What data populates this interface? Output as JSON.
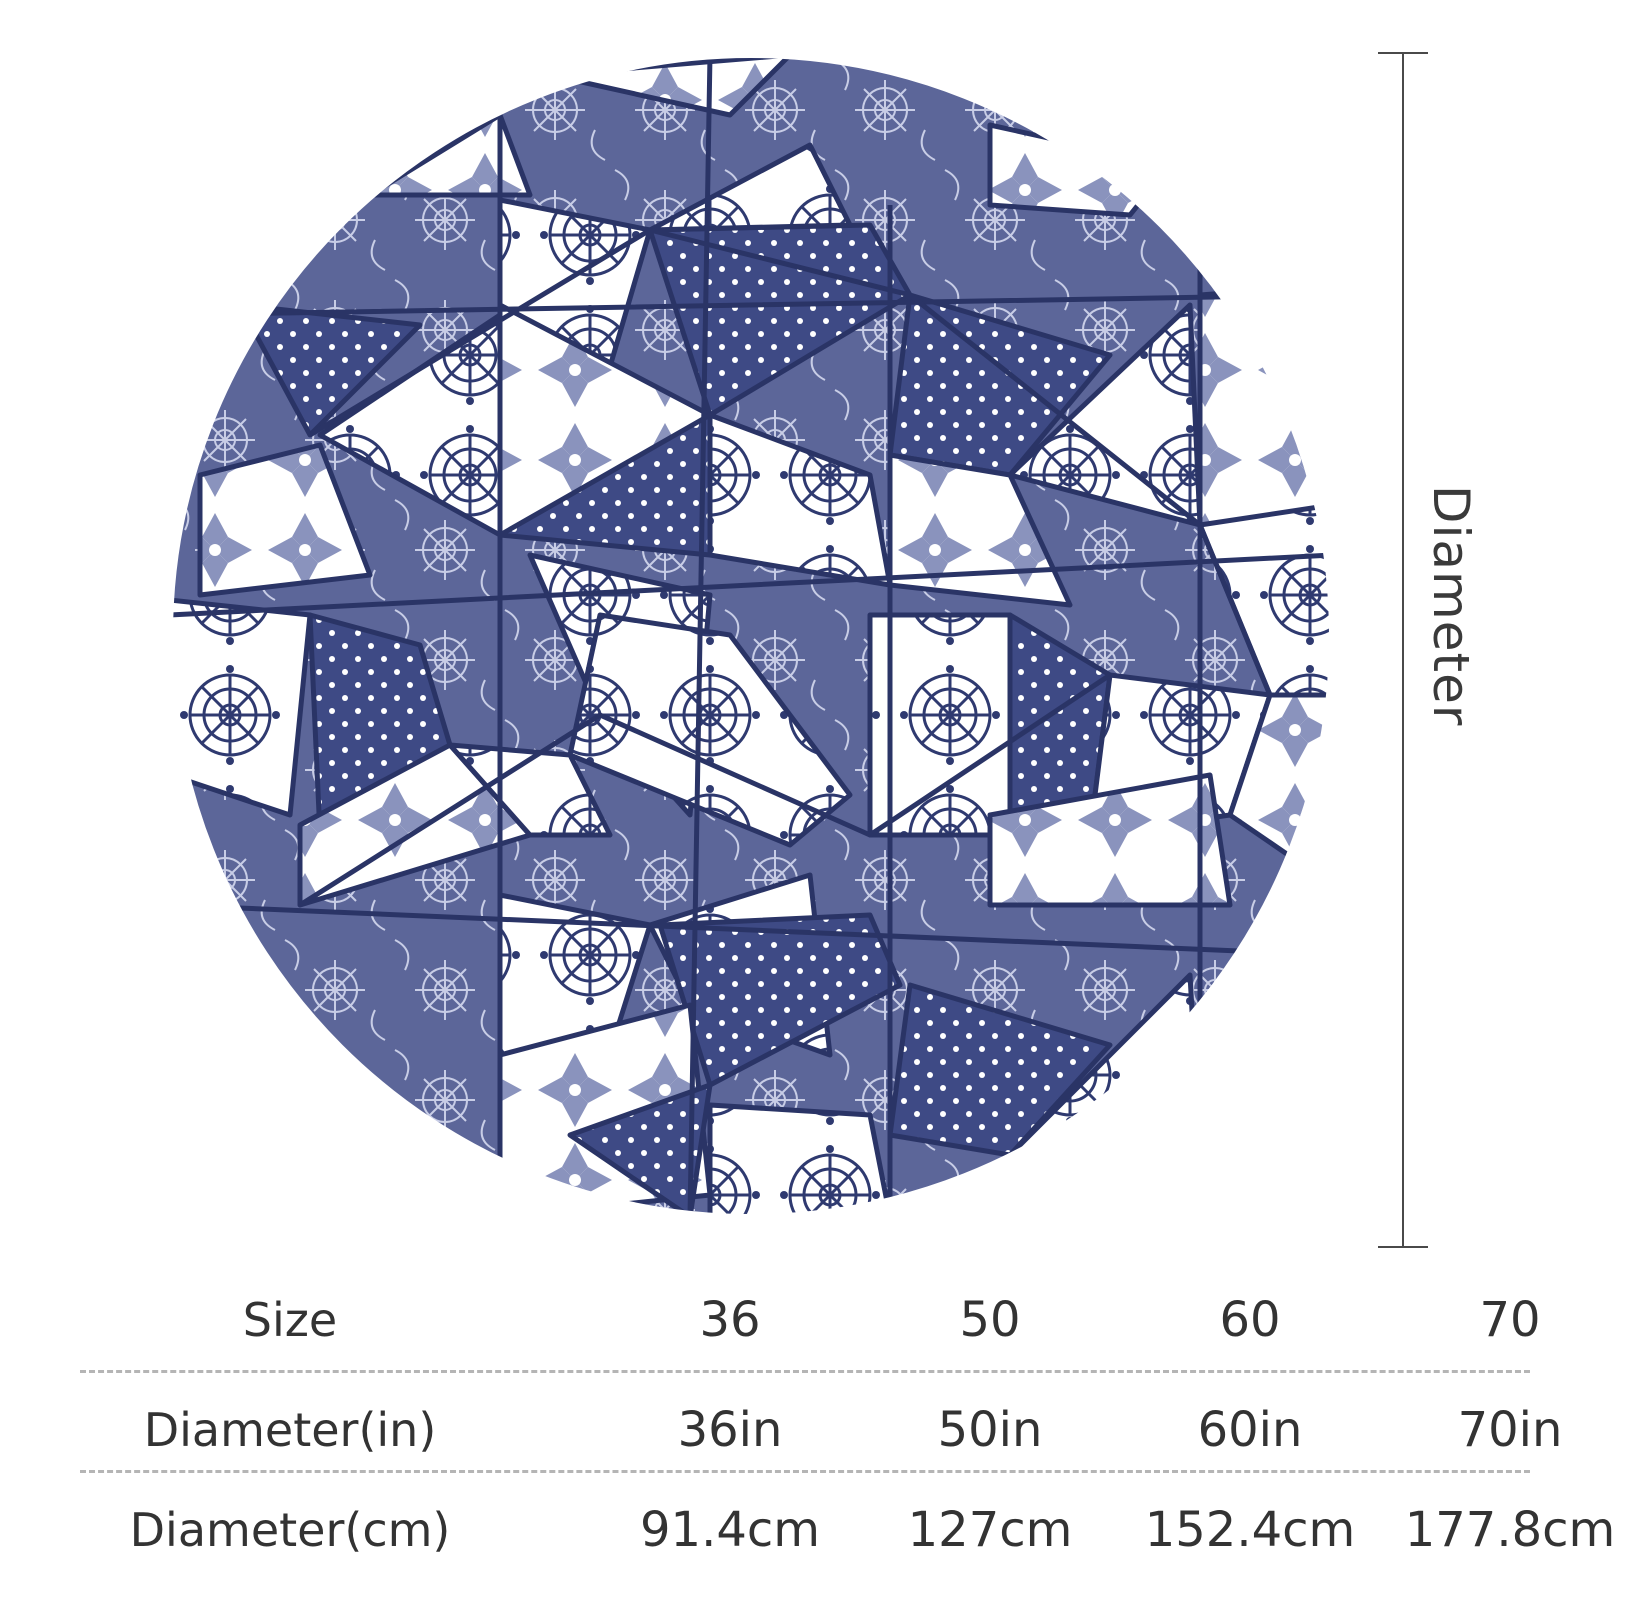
{
  "dimension_label": "Diameter",
  "colors": {
    "navy": "#35427a",
    "mid_blue": "#5c6699",
    "light_blue": "#8a93bd",
    "white": "#ffffff"
  },
  "table": {
    "rows": [
      {
        "label": "Size",
        "values": [
          "36",
          "50",
          "60",
          "70"
        ]
      },
      {
        "label": "Diameter(in)",
        "values": [
          "36in",
          "50in",
          "60in",
          "70in"
        ]
      },
      {
        "label": "Diameter(cm)",
        "values": [
          "91.4cm",
          "127cm",
          "152.4cm",
          "177.8cm"
        ]
      }
    ]
  }
}
